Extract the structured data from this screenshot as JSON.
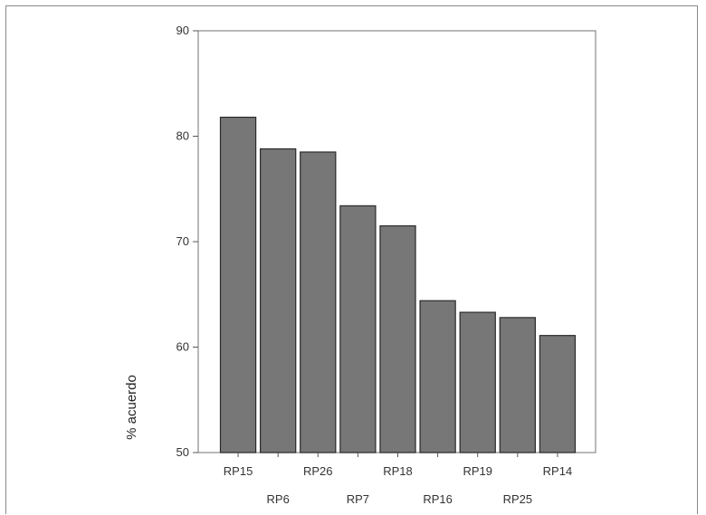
{
  "chart_data": {
    "type": "bar",
    "title": "",
    "xlabel": "",
    "ylabel": "% acuerdo",
    "ylim": [
      50,
      90
    ],
    "yticks": [
      50,
      60,
      70,
      80,
      90
    ],
    "categories": [
      "RP15",
      "RP6",
      "RP26",
      "RP7",
      "RP18",
      "RP16",
      "RP19",
      "RP25",
      "RP14"
    ],
    "values": [
      81.8,
      78.8,
      78.5,
      73.4,
      71.5,
      64.4,
      63.3,
      62.8,
      61.1
    ],
    "bar_color": "#777777",
    "grid": false,
    "legend": "none"
  }
}
